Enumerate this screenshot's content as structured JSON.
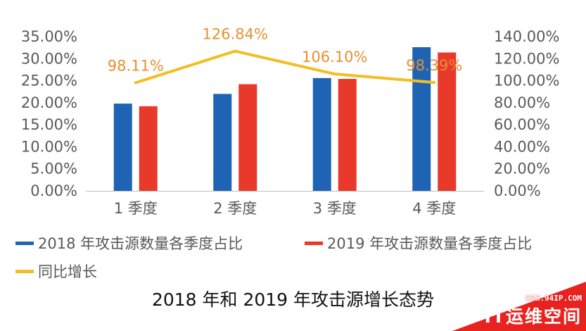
{
  "chart_data": {
    "type": "bar",
    "title": "2018 年和 2019 年攻击源增长态势",
    "categories": [
      "1 季度",
      "2 季度",
      "3 季度",
      "4 季度"
    ],
    "series": [
      {
        "name": "2018 年攻击源数量各季度占比",
        "type": "bar",
        "axis": "left",
        "color": "#1F64B4",
        "values": [
          19.8,
          22.0,
          25.6,
          32.6
        ]
      },
      {
        "name": "2019 年攻击源数量各季度占比",
        "type": "bar",
        "axis": "left",
        "color": "#E8392B",
        "values": [
          19.2,
          24.2,
          25.4,
          31.4
        ]
      },
      {
        "name": "同比增长",
        "type": "line",
        "axis": "right",
        "color": "#F2BE22",
        "values": [
          98.11,
          126.84,
          106.1,
          98.39
        ],
        "data_labels": [
          "98.11%",
          "126.84%",
          "106.10%",
          "98.39%"
        ]
      }
    ],
    "y_left": {
      "ylim": [
        0,
        35
      ],
      "ticks": [
        "0.00%",
        "5.00%",
        "10.00%",
        "15.00%",
        "20.00%",
        "25.00%",
        "30.00%",
        "35.00%"
      ]
    },
    "y_right": {
      "ylim": [
        0,
        140
      ],
      "ticks": [
        "0.00%",
        "20.00%",
        "40.00%",
        "60.00%",
        "80.00%",
        "100.00%",
        "120.00%",
        "140.00%"
      ]
    },
    "grid": false,
    "legend_position": "bottom"
  },
  "watermark": {
    "url": "WWW.94IP.COM",
    "name": "IT运维空间"
  }
}
